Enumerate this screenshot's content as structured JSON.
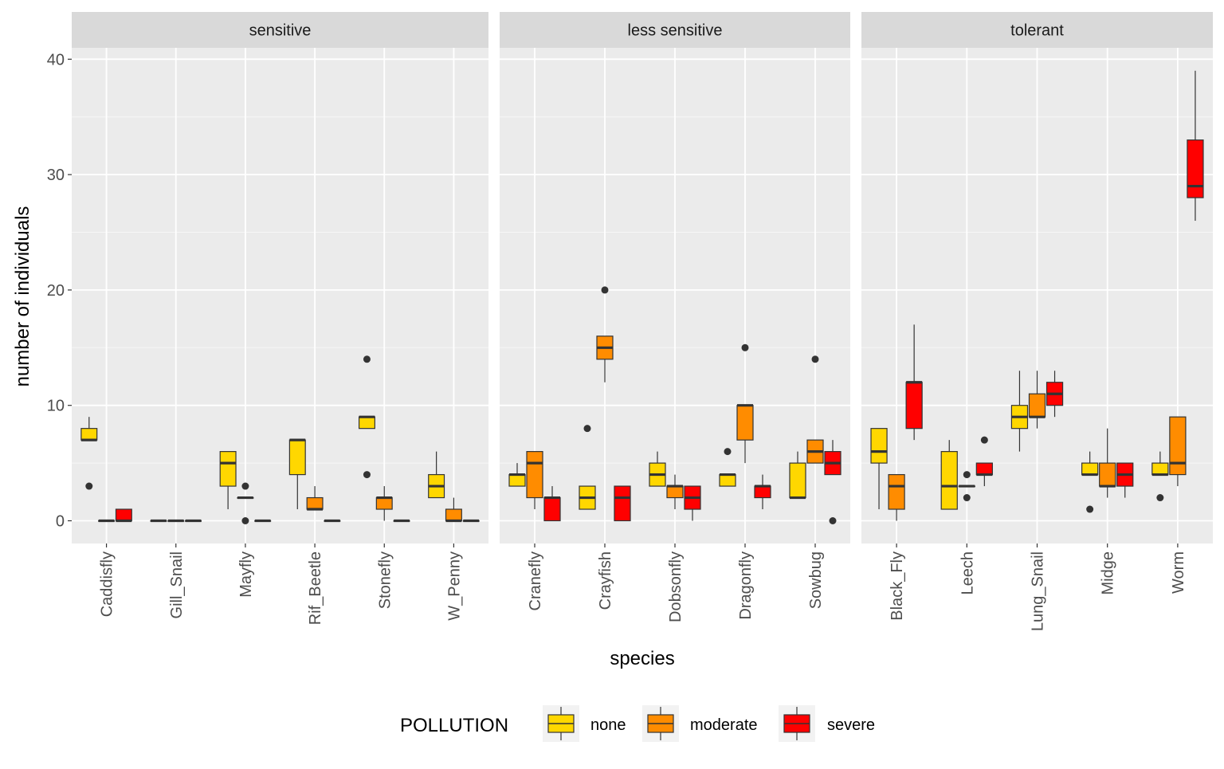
{
  "chart_data": {
    "type": "box",
    "ylabel": "number of individuals",
    "xlabel": "species",
    "ylim": [
      -2,
      42
    ],
    "yticks": [
      0,
      10,
      20,
      30,
      40
    ],
    "grid": true,
    "legend": {
      "title": "POLLUTION",
      "position": "bottom",
      "entries": [
        {
          "key": "none",
          "label": "none",
          "color": "#FFD700"
        },
        {
          "key": "moderate",
          "label": "moderate",
          "color": "#FF8C00"
        },
        {
          "key": "severe",
          "label": "severe",
          "color": "#FF0000"
        }
      ]
    },
    "outline_color": "#333333",
    "panels": [
      {
        "title": "sensitive",
        "categories": [
          {
            "name": "Caddisfly",
            "boxes": [
              {
                "group": "none",
                "low": 7,
                "q1": 7,
                "median": 7,
                "q3": 8,
                "high": 9,
                "outliers": [
                  3
                ]
              },
              {
                "group": "moderate",
                "low": 0,
                "q1": 0,
                "median": 0,
                "q3": 0,
                "high": 0,
                "outliers": []
              },
              {
                "group": "severe",
                "low": 0,
                "q1": 0,
                "median": 0,
                "q3": 1,
                "high": 1,
                "outliers": []
              }
            ]
          },
          {
            "name": "Gill_Snail",
            "boxes": [
              {
                "group": "none",
                "low": 0,
                "q1": 0,
                "median": 0,
                "q3": 0,
                "high": 0,
                "outliers": []
              },
              {
                "group": "moderate",
                "low": 0,
                "q1": 0,
                "median": 0,
                "q3": 0,
                "high": 0,
                "outliers": []
              },
              {
                "group": "severe",
                "low": 0,
                "q1": 0,
                "median": 0,
                "q3": 0,
                "high": 0,
                "outliers": []
              }
            ]
          },
          {
            "name": "Mayfly",
            "boxes": [
              {
                "group": "none",
                "low": 1,
                "q1": 3,
                "median": 5,
                "q3": 6,
                "high": 6,
                "outliers": []
              },
              {
                "group": "moderate",
                "low": 2,
                "q1": 2,
                "median": 2,
                "q3": 2,
                "high": 2,
                "outliers": [
                  3,
                  0
                ]
              },
              {
                "group": "severe",
                "low": 0,
                "q1": 0,
                "median": 0,
                "q3": 0,
                "high": 0,
                "outliers": []
              }
            ]
          },
          {
            "name": "Rif_Beetle",
            "boxes": [
              {
                "group": "none",
                "low": 1,
                "q1": 4,
                "median": 7,
                "q3": 7,
                "high": 7,
                "outliers": []
              },
              {
                "group": "moderate",
                "low": 1,
                "q1": 1,
                "median": 1,
                "q3": 2,
                "high": 3,
                "outliers": []
              },
              {
                "group": "severe",
                "low": 0,
                "q1": 0,
                "median": 0,
                "q3": 0,
                "high": 0,
                "outliers": []
              }
            ]
          },
          {
            "name": "Stonefly",
            "boxes": [
              {
                "group": "none",
                "low": 8,
                "q1": 8,
                "median": 9,
                "q3": 9,
                "high": 9,
                "outliers": [
                  14,
                  4
                ]
              },
              {
                "group": "moderate",
                "low": 0,
                "q1": 1,
                "median": 2,
                "q3": 2,
                "high": 3,
                "outliers": []
              },
              {
                "group": "severe",
                "low": 0,
                "q1": 0,
                "median": 0,
                "q3": 0,
                "high": 0,
                "outliers": []
              }
            ]
          },
          {
            "name": "W_Penny",
            "boxes": [
              {
                "group": "none",
                "low": 2,
                "q1": 2,
                "median": 3,
                "q3": 4,
                "high": 6,
                "outliers": []
              },
              {
                "group": "moderate",
                "low": 0,
                "q1": 0,
                "median": 0,
                "q3": 1,
                "high": 2,
                "outliers": []
              },
              {
                "group": "severe",
                "low": 0,
                "q1": 0,
                "median": 0,
                "q3": 0,
                "high": 0,
                "outliers": []
              }
            ]
          }
        ]
      },
      {
        "title": "less sensitive",
        "categories": [
          {
            "name": "Cranefly",
            "boxes": [
              {
                "group": "none",
                "low": 3,
                "q1": 3,
                "median": 4,
                "q3": 4,
                "high": 5,
                "outliers": []
              },
              {
                "group": "moderate",
                "low": 1,
                "q1": 2,
                "median": 5,
                "q3": 6,
                "high": 6,
                "outliers": []
              },
              {
                "group": "severe",
                "low": 0,
                "q1": 0,
                "median": 2,
                "q3": 2,
                "high": 3,
                "outliers": []
              }
            ]
          },
          {
            "name": "Crayfish",
            "boxes": [
              {
                "group": "none",
                "low": 1,
                "q1": 1,
                "median": 2,
                "q3": 3,
                "high": 3,
                "outliers": [
                  8
                ]
              },
              {
                "group": "moderate",
                "low": 12,
                "q1": 14,
                "median": 15,
                "q3": 16,
                "high": 16,
                "outliers": [
                  20
                ]
              },
              {
                "group": "severe",
                "low": 0,
                "q1": 0,
                "median": 2,
                "q3": 3,
                "high": 3,
                "outliers": []
              }
            ]
          },
          {
            "name": "Dobsonfly",
            "boxes": [
              {
                "group": "none",
                "low": 3,
                "q1": 3,
                "median": 4,
                "q3": 5,
                "high": 6,
                "outliers": []
              },
              {
                "group": "moderate",
                "low": 1,
                "q1": 2,
                "median": 3,
                "q3": 3,
                "high": 4,
                "outliers": []
              },
              {
                "group": "severe",
                "low": 0,
                "q1": 1,
                "median": 2,
                "q3": 3,
                "high": 3,
                "outliers": []
              }
            ]
          },
          {
            "name": "Dragonfly",
            "boxes": [
              {
                "group": "none",
                "low": 3,
                "q1": 3,
                "median": 4,
                "q3": 4,
                "high": 4,
                "outliers": [
                  6
                ]
              },
              {
                "group": "moderate",
                "low": 5,
                "q1": 7,
                "median": 10,
                "q3": 10,
                "high": 10,
                "outliers": [
                  15
                ]
              },
              {
                "group": "severe",
                "low": 1,
                "q1": 2,
                "median": 3,
                "q3": 3,
                "high": 4,
                "outliers": []
              }
            ]
          },
          {
            "name": "Sowbug",
            "boxes": [
              {
                "group": "none",
                "low": 2,
                "q1": 2,
                "median": 2,
                "q3": 5,
                "high": 6,
                "outliers": []
              },
              {
                "group": "moderate",
                "low": 5,
                "q1": 5,
                "median": 6,
                "q3": 7,
                "high": 7,
                "outliers": [
                  14
                ]
              },
              {
                "group": "severe",
                "low": 4,
                "q1": 4,
                "median": 5,
                "q3": 6,
                "high": 7,
                "outliers": [
                  0
                ]
              }
            ]
          }
        ]
      },
      {
        "title": "tolerant",
        "categories": [
          {
            "name": "Black_Fly",
            "boxes": [
              {
                "group": "none",
                "low": 1,
                "q1": 5,
                "median": 6,
                "q3": 8,
                "high": 8,
                "outliers": []
              },
              {
                "group": "moderate",
                "low": 0,
                "q1": 1,
                "median": 3,
                "q3": 4,
                "high": 4,
                "outliers": []
              },
              {
                "group": "severe",
                "low": 7,
                "q1": 8,
                "median": 12,
                "q3": 12,
                "high": 17,
                "outliers": []
              }
            ]
          },
          {
            "name": "Leech",
            "boxes": [
              {
                "group": "none",
                "low": 1,
                "q1": 1,
                "median": 3,
                "q3": 6,
                "high": 7,
                "outliers": []
              },
              {
                "group": "moderate",
                "low": 3,
                "q1": 3,
                "median": 3,
                "q3": 3,
                "high": 3,
                "outliers": [
                  4,
                  2
                ]
              },
              {
                "group": "severe",
                "low": 3,
                "q1": 4,
                "median": 4,
                "q3": 5,
                "high": 5,
                "outliers": [
                  7
                ]
              }
            ]
          },
          {
            "name": "Lung_Snail",
            "boxes": [
              {
                "group": "none",
                "low": 6,
                "q1": 8,
                "median": 9,
                "q3": 10,
                "high": 13,
                "outliers": []
              },
              {
                "group": "moderate",
                "low": 8,
                "q1": 9,
                "median": 9,
                "q3": 11,
                "high": 13,
                "outliers": []
              },
              {
                "group": "severe",
                "low": 9,
                "q1": 10,
                "median": 11,
                "q3": 12,
                "high": 13,
                "outliers": []
              }
            ]
          },
          {
            "name": "Midge",
            "boxes": [
              {
                "group": "none",
                "low": 4,
                "q1": 4,
                "median": 4,
                "q3": 5,
                "high": 6,
                "outliers": [
                  1
                ]
              },
              {
                "group": "moderate",
                "low": 2,
                "q1": 3,
                "median": 3,
                "q3": 5,
                "high": 8,
                "outliers": []
              },
              {
                "group": "severe",
                "low": 2,
                "q1": 3,
                "median": 4,
                "q3": 5,
                "high": 5,
                "outliers": []
              }
            ]
          },
          {
            "name": "Worm",
            "boxes": [
              {
                "group": "none",
                "low": 4,
                "q1": 4,
                "median": 4,
                "q3": 5,
                "high": 6,
                "outliers": [
                  2
                ]
              },
              {
                "group": "moderate",
                "low": 3,
                "q1": 4,
                "median": 5,
                "q3": 9,
                "high": 9,
                "outliers": []
              },
              {
                "group": "severe",
                "low": 26,
                "q1": 28,
                "median": 29,
                "q3": 33,
                "high": 39,
                "outliers": []
              }
            ]
          }
        ]
      }
    ]
  }
}
